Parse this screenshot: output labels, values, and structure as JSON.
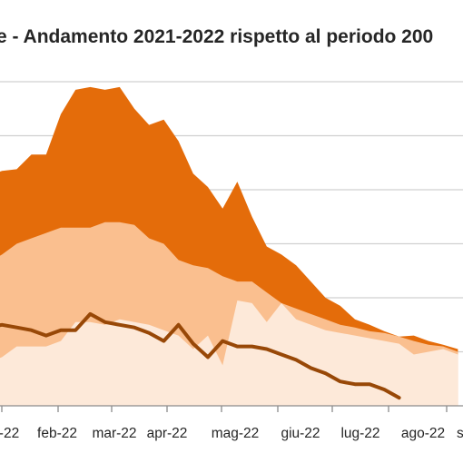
{
  "chart_data": {
    "type": "area",
    "title": "e - Andamento 2021-2022 rispetto al periodo 200",
    "xlabel": "",
    "ylabel": "",
    "x_ticks": [
      "-22",
      "feb-22",
      "mar-22",
      "apr-22",
      "mag-22",
      "giu-22",
      "lug-22",
      "ago-22",
      "s"
    ],
    "ylim": [
      0,
      6
    ],
    "grid": true,
    "legend": "none",
    "x": [
      "gen-22 w1",
      "gen-22 w2",
      "gen-22 w3",
      "gen-22 w4",
      "feb-22 w1",
      "feb-22 w2",
      "feb-22 w3",
      "feb-22 w4",
      "mar-22 w1",
      "mar-22 w2",
      "mar-22 w3",
      "mar-22 w4",
      "apr-22 w1",
      "apr-22 w2",
      "apr-22 w3",
      "apr-22 w4",
      "mag-22 w1",
      "mag-22 w2",
      "mag-22 w3",
      "mag-22 w4",
      "giu-22 w1",
      "giu-22 w2",
      "giu-22 w3",
      "giu-22 w4",
      "lug-22 w1",
      "lug-22 w2",
      "lug-22 w3",
      "lug-22 w4",
      "ago-22 w1",
      "ago-22 w2",
      "ago-22 w3",
      "ago-22 w4",
      "set-22 w1"
    ],
    "series": [
      {
        "role": "max-band",
        "color": "#e46c0a",
        "values": [
          4.25,
          4.35,
          4.38,
          4.65,
          4.65,
          5.4,
          5.85,
          5.9,
          5.85,
          5.9,
          5.5,
          5.2,
          5.3,
          4.9,
          4.3,
          4.05,
          3.65,
          4.15,
          3.5,
          2.95,
          2.8,
          2.6,
          2.3,
          2.0,
          1.85,
          1.6,
          1.5,
          1.38,
          1.28,
          1.3,
          1.2,
          1.13,
          1.05
        ]
      },
      {
        "role": "upper-band",
        "color": "#fabf8f",
        "values": [
          2.65,
          2.8,
          3.0,
          3.1,
          3.2,
          3.3,
          3.3,
          3.3,
          3.4,
          3.4,
          3.35,
          3.1,
          3.0,
          2.7,
          2.6,
          2.55,
          2.4,
          2.3,
          2.3,
          2.1,
          1.9,
          1.8,
          1.7,
          1.6,
          1.5,
          1.45,
          1.38,
          1.35,
          1.28,
          1.2,
          1.13,
          1.1,
          1.0
        ]
      },
      {
        "role": "lower-band",
        "color": "#fde9d9",
        "values": [
          0.8,
          0.9,
          1.1,
          1.1,
          1.1,
          1.2,
          1.55,
          1.55,
          1.5,
          1.6,
          1.55,
          1.5,
          1.4,
          1.3,
          1.05,
          1.3,
          0.75,
          1.95,
          1.9,
          1.55,
          1.9,
          1.6,
          1.5,
          1.4,
          1.35,
          1.3,
          1.25,
          1.2,
          1.15,
          0.95,
          1.0,
          1.05,
          0.95
        ]
      },
      {
        "role": "2021-2022",
        "color": "#984807",
        "values": [
          1.45,
          1.5,
          1.45,
          1.4,
          1.3,
          1.4,
          1.4,
          1.7,
          1.55,
          1.5,
          1.45,
          1.35,
          1.2,
          1.5,
          1.15,
          0.9,
          1.2,
          1.1,
          1.1,
          1.05,
          0.95,
          0.85,
          0.7,
          0.6,
          0.45,
          0.4,
          0.4,
          0.3,
          0.15,
          null,
          null,
          null,
          null
        ]
      }
    ]
  }
}
